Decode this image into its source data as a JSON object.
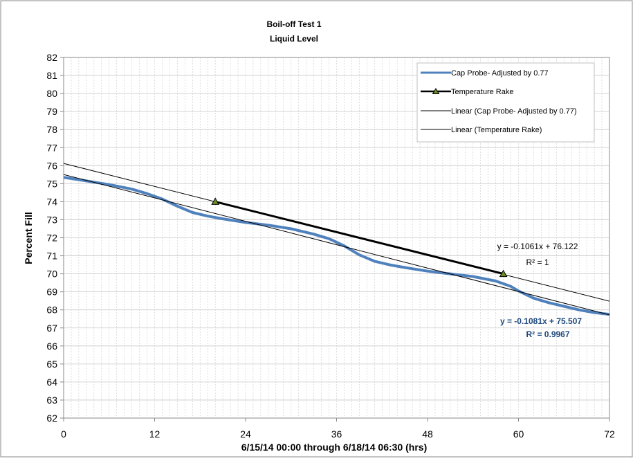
{
  "chart_data": {
    "type": "line",
    "title": "Boil-off Test 1",
    "subtitle": "Liquid Level",
    "xlabel": "6/15/14 00:00 through 6/18/14 06:30 (hrs)",
    "ylabel": "Percent Fill",
    "xlim": [
      0,
      72
    ],
    "ylim": [
      62,
      82
    ],
    "x_ticks": [
      0,
      12,
      24,
      36,
      48,
      60,
      72
    ],
    "y_ticks": [
      62,
      63,
      64,
      65,
      66,
      67,
      68,
      69,
      70,
      71,
      72,
      73,
      74,
      75,
      76,
      77,
      78,
      79,
      80,
      81,
      82
    ],
    "grid": true,
    "legend_position": "top-right",
    "series": [
      {
        "name": "Cap Probe- Adjusted by 0.77",
        "color": "#4f81bd",
        "points": [
          [
            0,
            75.35
          ],
          [
            3,
            75.15
          ],
          [
            6,
            74.95
          ],
          [
            9,
            74.7
          ],
          [
            11,
            74.45
          ],
          [
            13,
            74.15
          ],
          [
            15,
            73.75
          ],
          [
            17,
            73.4
          ],
          [
            19,
            73.2
          ],
          [
            21,
            73.05
          ],
          [
            24,
            72.85
          ],
          [
            27,
            72.7
          ],
          [
            30,
            72.5
          ],
          [
            33,
            72.2
          ],
          [
            35,
            71.95
          ],
          [
            37,
            71.55
          ],
          [
            39,
            71.05
          ],
          [
            41,
            70.7
          ],
          [
            43,
            70.5
          ],
          [
            45,
            70.35
          ],
          [
            48,
            70.15
          ],
          [
            51,
            70.0
          ],
          [
            54,
            69.85
          ],
          [
            57,
            69.6
          ],
          [
            59,
            69.3
          ],
          [
            60,
            69.05
          ],
          [
            62,
            68.65
          ],
          [
            64,
            68.4
          ],
          [
            66,
            68.2
          ],
          [
            68,
            68.0
          ],
          [
            70,
            67.85
          ],
          [
            72,
            67.75
          ]
        ]
      },
      {
        "name": "Temperature Rake",
        "color": "#000000",
        "marker": "triangle",
        "points": [
          [
            20,
            74.0
          ],
          [
            58,
            70.0
          ]
        ]
      },
      {
        "name": "Linear (Cap Probe- Adjusted by 0.77)",
        "color": "#000000",
        "trendline": true,
        "slope": -0.1081,
        "intercept": 75.507
      },
      {
        "name": "Linear (Temperature Rake)",
        "color": "#000000",
        "trendline": true,
        "slope": -0.1061,
        "intercept": 76.122
      }
    ],
    "annotations": [
      {
        "line1": "y = -0.1061x + 76.122",
        "line2": "R² = 1",
        "color": "#000000",
        "bold": false
      },
      {
        "line1": "y = -0.1081x + 75.507",
        "line2": "R² = 0.9967",
        "color": "#1f497d",
        "bold": true
      }
    ]
  }
}
